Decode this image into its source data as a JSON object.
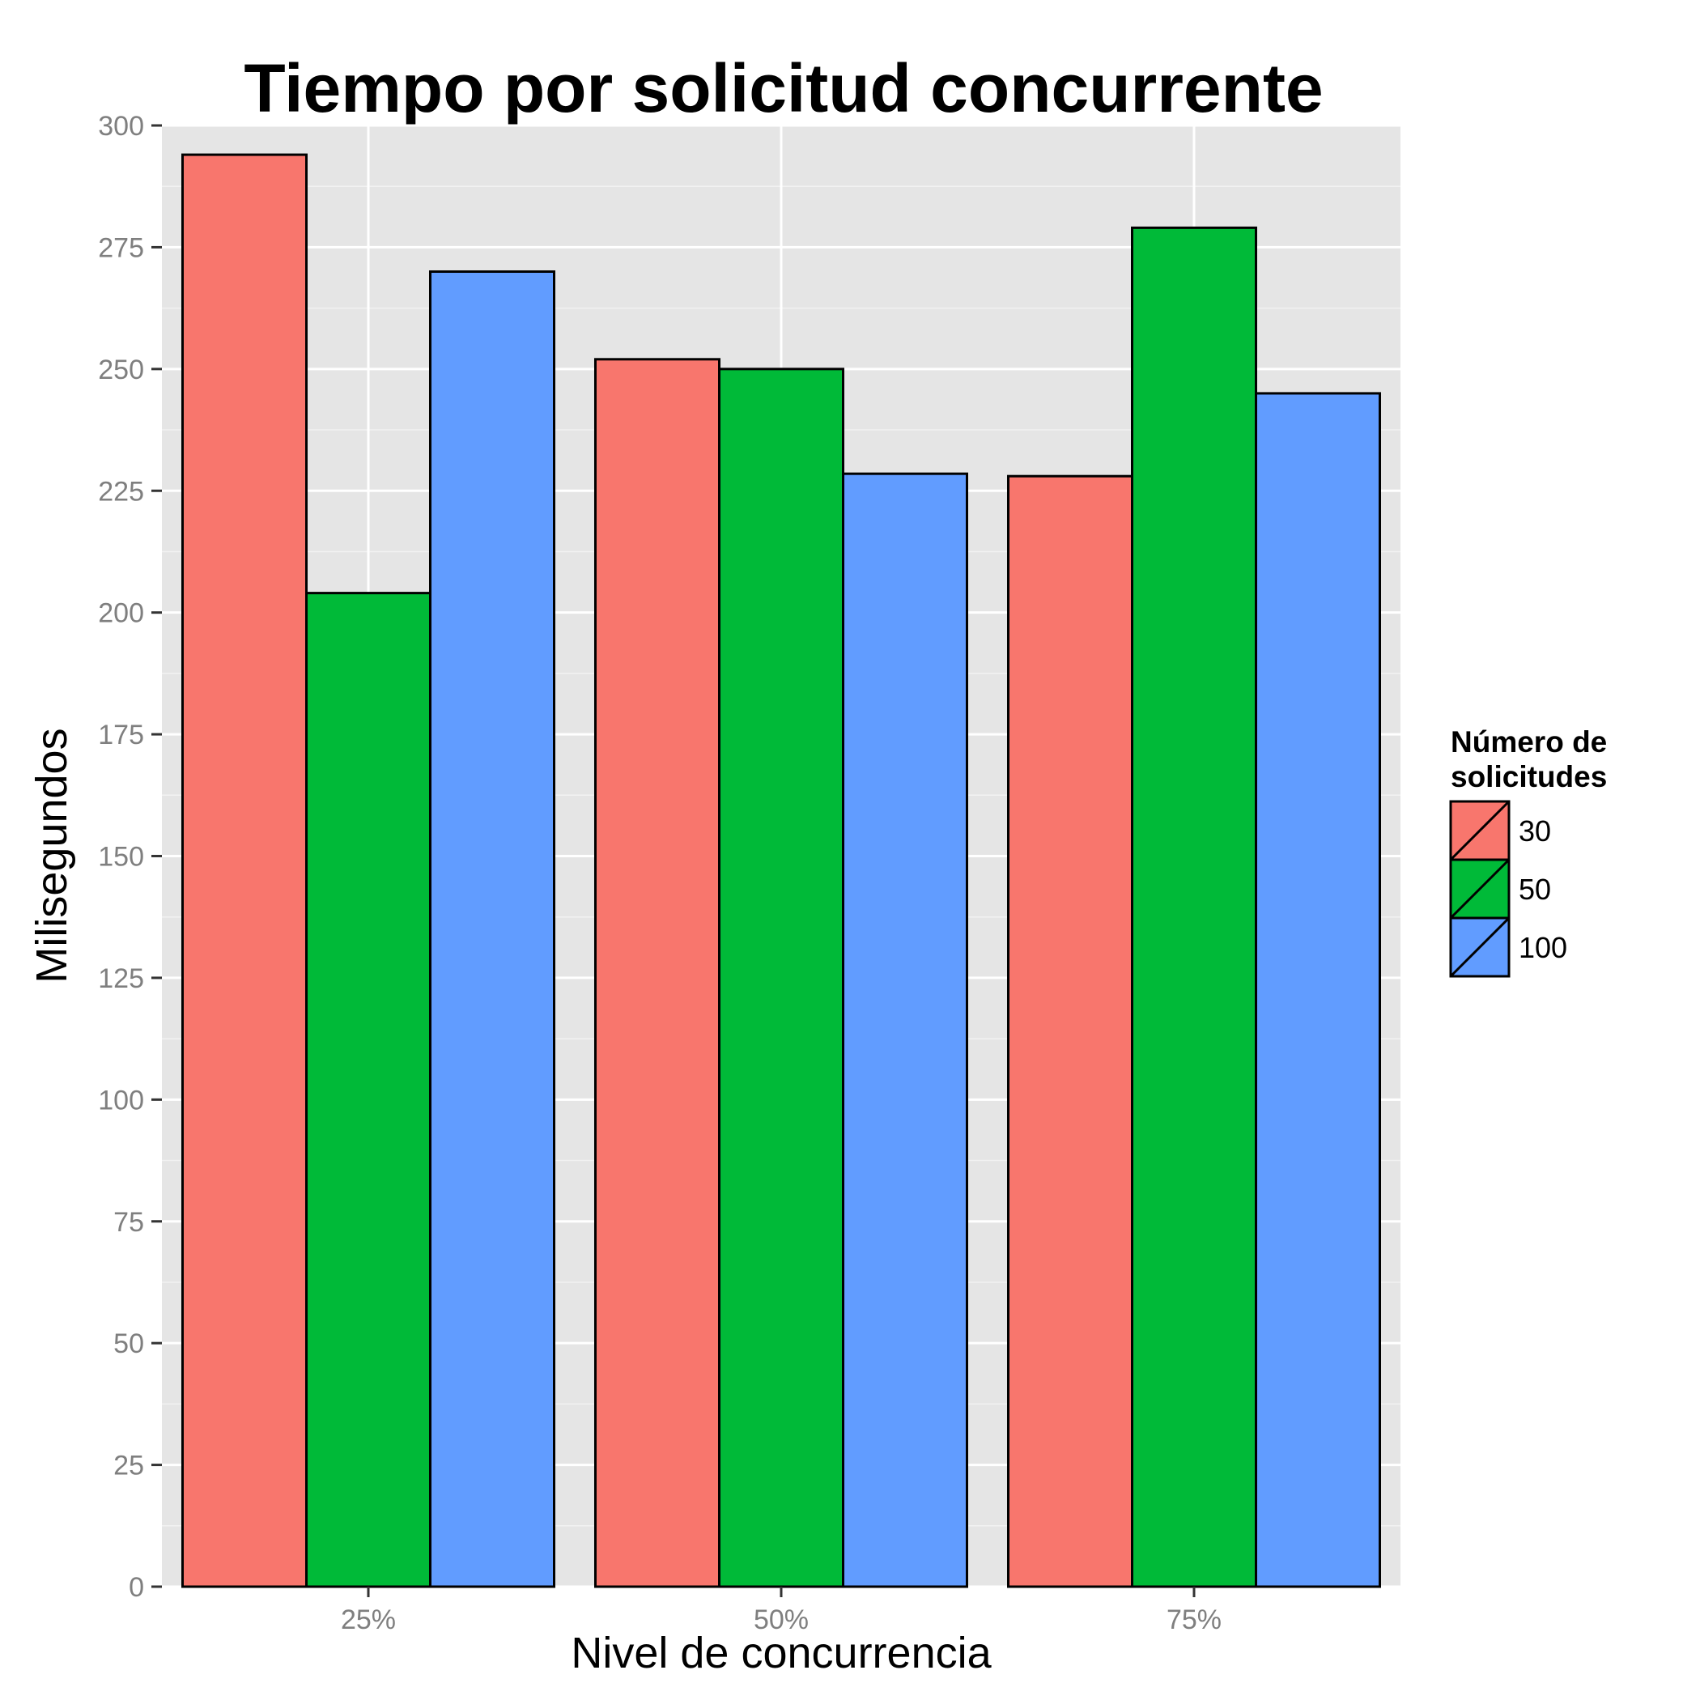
{
  "chart_data": {
    "type": "bar",
    "title": "Tiempo por solicitud concurrente",
    "xlabel": "Nivel de concurrencia",
    "ylabel": "Milisegundos",
    "categories": [
      "25%",
      "50%",
      "75%"
    ],
    "series": [
      {
        "name": "30",
        "color": "#F8766D",
        "values": [
          294,
          252,
          228
        ]
      },
      {
        "name": "50",
        "color": "#00BA38",
        "values": [
          204,
          250,
          279
        ]
      },
      {
        "name": "100",
        "color": "#619CFF",
        "values": [
          270,
          228.5,
          245
        ]
      }
    ],
    "ylim": [
      0,
      300
    ],
    "yticks": [
      0,
      25,
      50,
      75,
      100,
      125,
      150,
      175,
      200,
      225,
      250,
      275,
      300
    ],
    "grid": true,
    "legend": {
      "title_lines": [
        "Número de",
        "solicitudes"
      ],
      "position": "right"
    }
  }
}
